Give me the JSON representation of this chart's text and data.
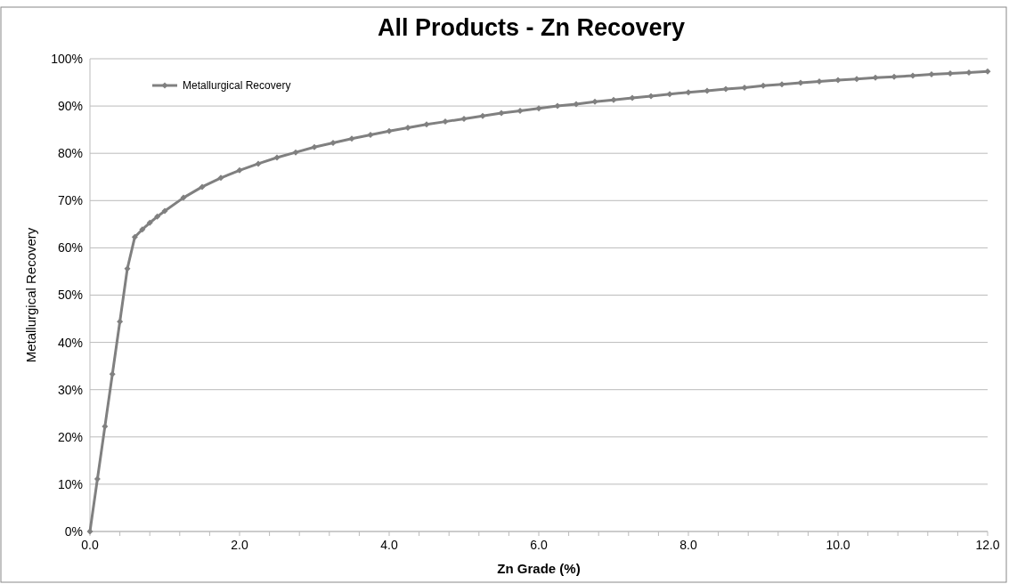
{
  "chart_data": {
    "type": "line",
    "title": "All Products - Zn Recovery",
    "xlabel": "Zn Grade (%)",
    "ylabel": "Metallurgical Recovery",
    "x": [
      0,
      0.1,
      0.2,
      0.3,
      0.4,
      0.5,
      0.6,
      0.7,
      0.8,
      0.9,
      1.0,
      1.25,
      1.5,
      1.75,
      2.0,
      2.25,
      2.5,
      2.75,
      3.0,
      3.25,
      3.5,
      3.75,
      4.0,
      4.25,
      4.5,
      4.75,
      5.0,
      5.25,
      5.5,
      5.75,
      6.0,
      6.25,
      6.5,
      6.75,
      7.0,
      7.25,
      7.5,
      7.75,
      8.0,
      8.25,
      8.5,
      8.75,
      9.0,
      9.25,
      9.5,
      9.75,
      10.0,
      10.25,
      10.5,
      10.75,
      11.0,
      11.25,
      11.5,
      11.75,
      12.0
    ],
    "series": [
      {
        "name": "Metallurgical Recovery",
        "color": "#808080",
        "values": [
          0,
          11.1,
          22.2,
          33.3,
          44.4,
          55.6,
          62.3,
          63.9,
          65.3,
          66.6,
          67.8,
          70.6,
          72.9,
          74.8,
          76.4,
          77.8,
          79.1,
          80.2,
          81.3,
          82.2,
          83.1,
          83.9,
          84.7,
          85.4,
          86.1,
          86.7,
          87.3,
          87.9,
          88.5,
          89.0,
          89.5,
          90.0,
          90.4,
          90.9,
          91.3,
          91.7,
          92.1,
          92.5,
          92.9,
          93.2,
          93.6,
          93.9,
          94.3,
          94.6,
          94.9,
          95.2,
          95.5,
          95.7,
          96.0,
          96.2,
          96.4,
          96.7,
          96.9,
          97.1,
          97.3
        ]
      }
    ],
    "xlim": [
      0,
      12
    ],
    "xticks": [
      {
        "value": 0,
        "label": "0.0"
      },
      {
        "value": 0.4,
        "label": null
      },
      {
        "value": 0.8,
        "label": null
      },
      {
        "value": 1.2,
        "label": null
      },
      {
        "value": 1.6,
        "label": null
      },
      {
        "value": 2,
        "label": "2.0"
      },
      {
        "value": 2.4,
        "label": null
      },
      {
        "value": 2.8,
        "label": null
      },
      {
        "value": 3.2,
        "label": null
      },
      {
        "value": 3.6,
        "label": null
      },
      {
        "value": 4,
        "label": "4.0"
      },
      {
        "value": 4.4,
        "label": null
      },
      {
        "value": 4.8,
        "label": null
      },
      {
        "value": 5.2,
        "label": null
      },
      {
        "value": 5.6,
        "label": null
      },
      {
        "value": 6,
        "label": "6.0"
      },
      {
        "value": 6.4,
        "label": null
      },
      {
        "value": 6.8,
        "label": null
      },
      {
        "value": 7.2,
        "label": null
      },
      {
        "value": 7.6,
        "label": null
      },
      {
        "value": 8,
        "label": "8.0"
      },
      {
        "value": 8.4,
        "label": null
      },
      {
        "value": 8.8,
        "label": null
      },
      {
        "value": 9.2,
        "label": null
      },
      {
        "value": 9.6,
        "label": null
      },
      {
        "value": 10,
        "label": "10.0"
      },
      {
        "value": 10.4,
        "label": null
      },
      {
        "value": 10.8,
        "label": null
      },
      {
        "value": 11.2,
        "label": null
      },
      {
        "value": 11.6,
        "label": null
      },
      {
        "value": 12,
        "label": "12.0"
      }
    ],
    "ylim": [
      0,
      100
    ],
    "yticks": [
      {
        "value": 0,
        "label": "0%"
      },
      {
        "value": 10,
        "label": "10%"
      },
      {
        "value": 20,
        "label": "20%"
      },
      {
        "value": 30,
        "label": "30%"
      },
      {
        "value": 40,
        "label": "40%"
      },
      {
        "value": 50,
        "label": "50%"
      },
      {
        "value": 60,
        "label": "60%"
      },
      {
        "value": 70,
        "label": "70%"
      },
      {
        "value": 80,
        "label": "80%"
      },
      {
        "value": 90,
        "label": "90%"
      },
      {
        "value": 100,
        "label": "100%"
      }
    ],
    "grid": "y",
    "legend": "top left",
    "marker": "diamond",
    "line_style": "solid"
  }
}
